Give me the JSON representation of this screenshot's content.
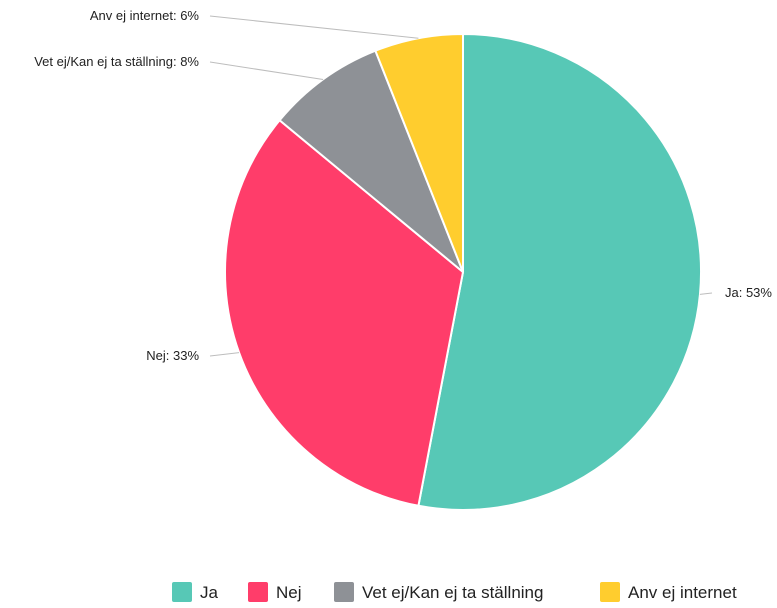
{
  "chart_data": {
    "type": "pie",
    "title": "",
    "categories": [
      "Ja",
      "Nej",
      "Vet ej/Kan ej ta ställning",
      "Anv ej internet"
    ],
    "values": [
      53,
      33,
      8,
      6
    ],
    "unit": "%",
    "data_labels": [
      "Ja: 53%",
      "Nej: 33%",
      "Vet ej/Kan ej ta ställning: 8%",
      "Anv ej internet: 6%"
    ],
    "colors": [
      "#57c8b6",
      "#ff3d6a",
      "#8e9196",
      "#ffcd2e"
    ],
    "legend": {
      "placement": "bottom-right",
      "entries": [
        "Ja",
        "Nej",
        "Vet ej/Kan ej ta ställning",
        "Anv ej internet"
      ]
    },
    "start": "top, clockwise"
  }
}
